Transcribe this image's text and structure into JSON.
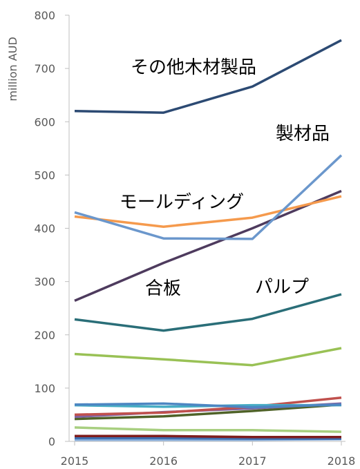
{
  "chart_data": {
    "type": "line",
    "ylabel": "million AUD",
    "xlabel": "",
    "title": "",
    "x": [
      "2015",
      "2016",
      "2017",
      "2018"
    ],
    "ylim": [
      0,
      800
    ],
    "yticks": [
      0,
      100,
      200,
      300,
      400,
      500,
      600,
      700,
      800
    ],
    "grid": false,
    "series": [
      {
        "name": "その他木材製品",
        "color": "#2c4a73",
        "values": [
          620,
          617,
          666,
          753
        ]
      },
      {
        "name": "製材品",
        "color": "#6b97cc",
        "values": [
          430,
          381,
          380,
          537
        ]
      },
      {
        "name": "モールディング",
        "color": "#f59a4d",
        "values": [
          422,
          403,
          420,
          460
        ]
      },
      {
        "name": "合板",
        "color": "#4e3b5e",
        "values": [
          264,
          335,
          400,
          470
        ]
      },
      {
        "values": [
          229,
          208,
          230,
          276
        ],
        "color": "#2a6e78"
      },
      {
        "values": [
          164,
          154,
          143,
          175
        ],
        "color": "#99c155"
      },
      {
        "values": [
          69,
          71,
          64,
          69
        ],
        "color": "#4d86c2"
      },
      {
        "values": [
          68,
          65,
          68,
          68
        ],
        "color": "#47adc4"
      },
      {
        "values": [
          50,
          54,
          65,
          82
        ],
        "color": "#c0504d"
      },
      {
        "values": [
          46,
          55,
          62,
          71
        ],
        "color": "#8064a2"
      },
      {
        "values": [
          42,
          47,
          57,
          69
        ],
        "color": "#4f6228"
      },
      {
        "values": [
          26,
          21,
          21,
          18
        ],
        "color": "#a8cf80"
      },
      {
        "values": [
          10,
          10,
          8,
          8
        ],
        "color": "#7f1d1d"
      },
      {
        "values": [
          6,
          6,
          5,
          5
        ],
        "color": "#3f6fb0"
      },
      {
        "values": [
          3,
          3,
          3,
          4
        ],
        "color": "#8fb4e0"
      }
    ],
    "annotations": [
      {
        "text": "その他木材製品"
      },
      {
        "text": "製材品"
      },
      {
        "text": "モールディング"
      },
      {
        "text": "合板"
      },
      {
        "text": "パルプ"
      }
    ]
  }
}
